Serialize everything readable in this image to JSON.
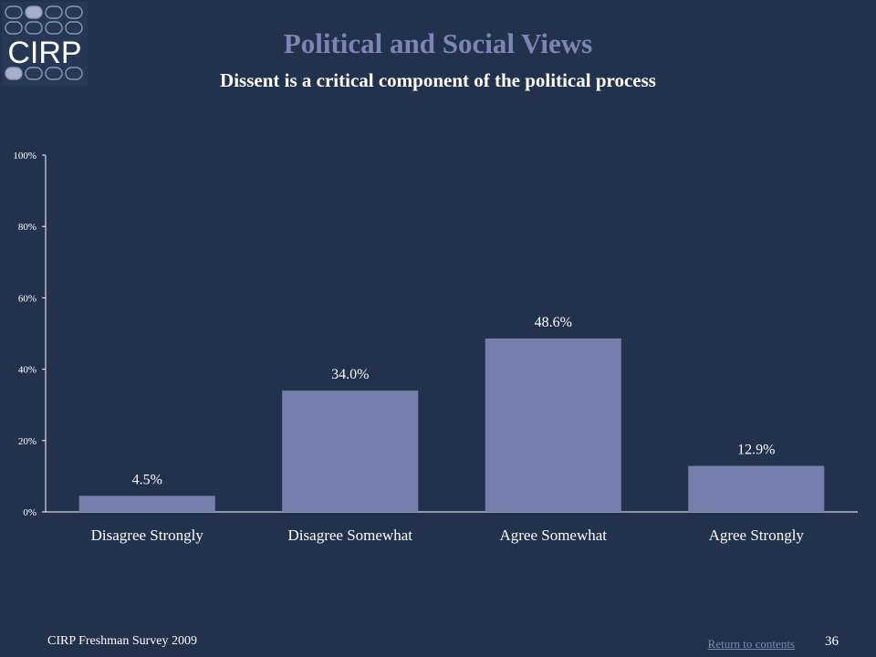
{
  "logo": {
    "text": "CIRP"
  },
  "header": {
    "title": "Political and Social Views",
    "subtitle": "Dissent is a critical component of the political process"
  },
  "chart_data": {
    "type": "bar",
    "categories": [
      "Disagree Strongly",
      "Disagree Somewhat",
      "Agree Somewhat",
      "Agree Strongly"
    ],
    "values": [
      4.5,
      34.0,
      48.6,
      12.9
    ],
    "data_labels": [
      "4.5%",
      "34.0%",
      "48.6%",
      "12.9%"
    ],
    "y_ticks": [
      "0%",
      "20%",
      "40%",
      "60%",
      "80%",
      "100%"
    ],
    "ylim": [
      0,
      100
    ],
    "bar_color": "#747fac",
    "grid": false,
    "legend": false
  },
  "footer": {
    "source": "CIRP Freshman Survey 2009",
    "link": "Return to contents",
    "page_number": "36"
  }
}
